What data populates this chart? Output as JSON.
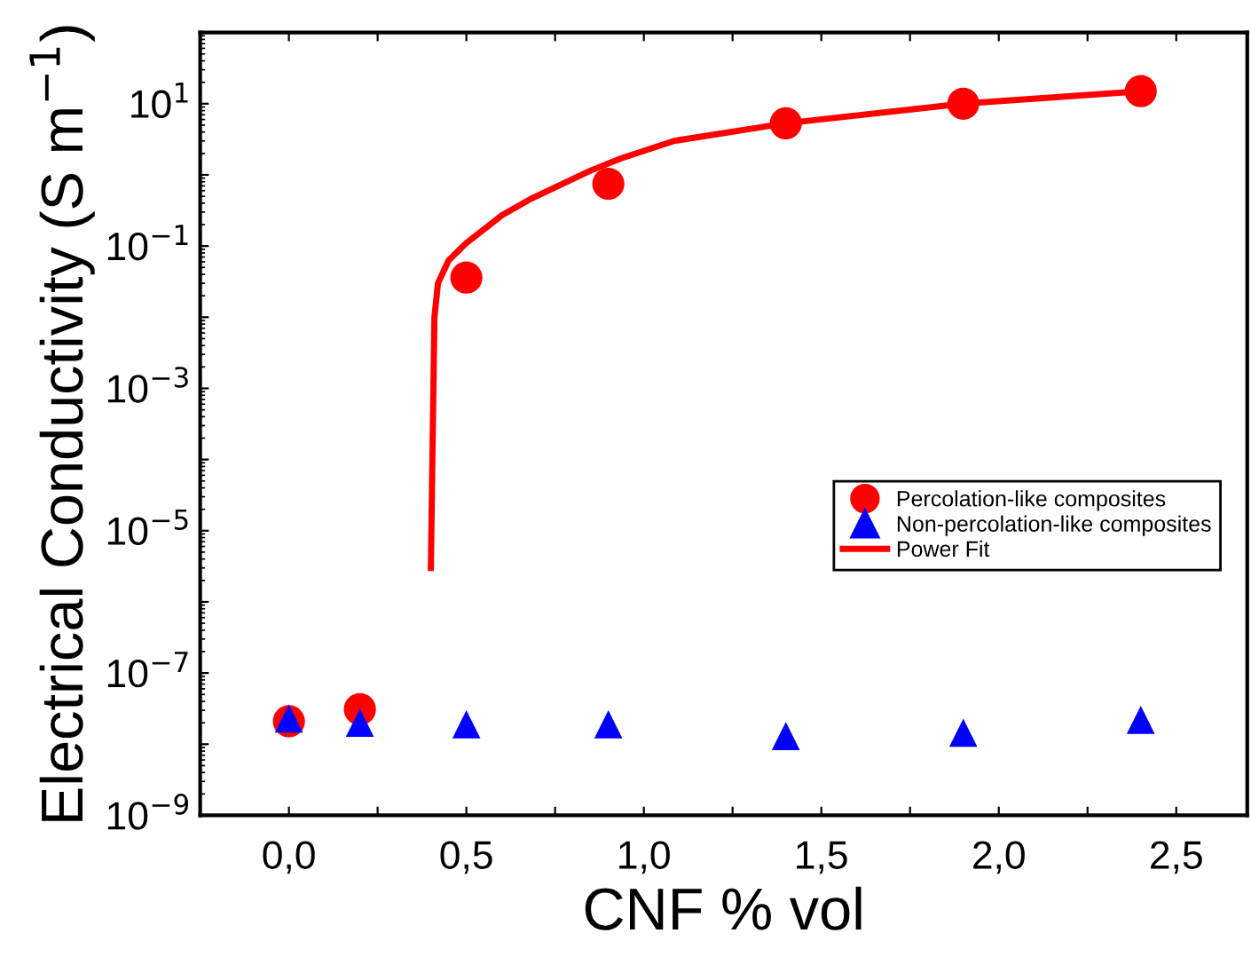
{
  "chart_data": {
    "type": "scatter",
    "xlabel": "CNF % vol",
    "ylabel": "Electrical Conductivity (S m$^{−1}$)",
    "log": "y",
    "grid": false,
    "legend": "right",
    "xlim": [
      -0.25,
      2.7
    ],
    "ylim": [
      1e-09,
      100
    ],
    "xticks": [
      {
        "value": 0,
        "label": "0,0"
      },
      {
        "value": 0.25,
        "label": null
      },
      {
        "value": 0.5,
        "label": "0,5"
      },
      {
        "value": 0.75,
        "label": null
      },
      {
        "value": 1.0,
        "label": "1,0"
      },
      {
        "value": 1.25,
        "label": null
      },
      {
        "value": 1.5,
        "label": "1,5"
      },
      {
        "value": 1.75,
        "label": null
      },
      {
        "value": 2.0,
        "label": "2,0"
      },
      {
        "value": 2.25,
        "label": null
      },
      {
        "value": 2.5,
        "label": "2,5"
      }
    ],
    "yticks": [
      {
        "value": 1e-09,
        "label": "10$^{−9}$"
      },
      {
        "value": 1e-08,
        "label": null
      },
      {
        "value": 1e-07,
        "label": "10$^{−7}$"
      },
      {
        "value": 1e-06,
        "label": null
      },
      {
        "value": 1e-05,
        "label": "10$^{−5}$"
      },
      {
        "value": 0.0001,
        "label": null
      },
      {
        "value": 0.001,
        "label": "10$^{−3}$"
      },
      {
        "value": 0.01,
        "label": null
      },
      {
        "value": 0.1,
        "label": "10$^{−1}$"
      },
      {
        "value": 1,
        "label": null
      },
      {
        "value": 10,
        "label": "10$^{1}$"
      }
    ],
    "series": [
      {
        "name": "Percolation-like composites",
        "marker": "circle",
        "color": "#ff0000",
        "x": [
          0,
          0.2,
          0.5,
          0.9,
          1.4,
          1.9,
          2.4
        ],
        "values": [
          2.1e-08,
          3.1e-08,
          0.036,
          0.75,
          5.3,
          10,
          15
        ]
      },
      {
        "name": "Non-percolation-like composites",
        "marker": "triangle",
        "color": "#0000ff",
        "x": [
          0,
          0.2,
          0.5,
          0.9,
          1.4,
          1.9,
          2.4
        ],
        "values": [
          2.3e-08,
          2e-08,
          1.9e-08,
          1.9e-08,
          1.3e-08,
          1.45e-08,
          2.2e-08
        ]
      },
      {
        "name": "Power Fit",
        "type": "line",
        "marker": "none",
        "line_style": "solid",
        "color": "#ff0000",
        "x": [
          0.4,
          0.41,
          0.42,
          0.45,
          0.5,
          0.6,
          0.685,
          0.85,
          0.935,
          1.085,
          1.4,
          1.9,
          2.4
        ],
        "values": [
          3e-06,
          0.01,
          0.03,
          0.063,
          0.11,
          0.27,
          0.47,
          1.15,
          1.7,
          3.0,
          5.3,
          10,
          15
        ]
      }
    ]
  }
}
